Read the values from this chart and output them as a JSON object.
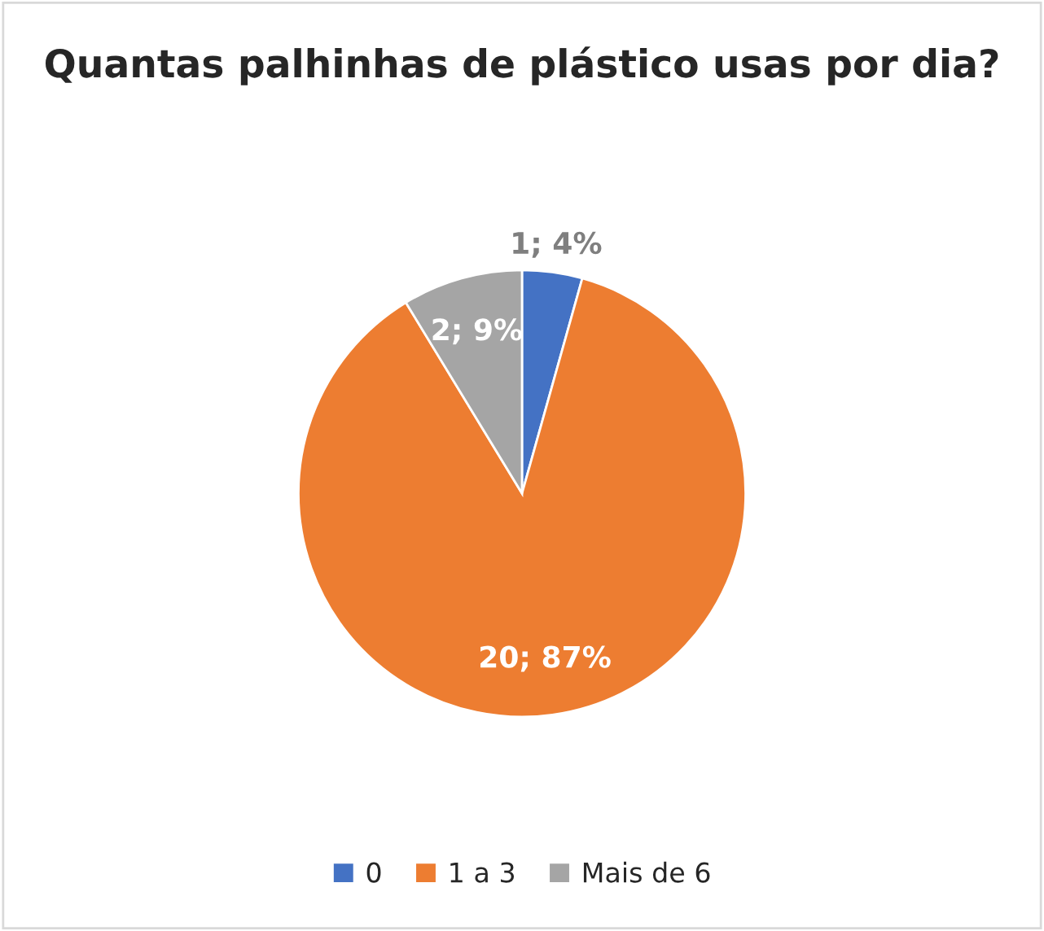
{
  "chart_data": {
    "type": "pie",
    "title": "Quantas palhinhas de plástico usas por dia?",
    "categories": [
      "0",
      "1 a 3",
      "Mais de 6"
    ],
    "values": [
      1,
      20,
      2
    ],
    "colors": [
      "#4472c4",
      "#ed7d31",
      "#a5a5a5"
    ],
    "value_labels": [
      "1; 4%",
      "20; 87%",
      "2; 9%"
    ],
    "legend": "bottom"
  }
}
